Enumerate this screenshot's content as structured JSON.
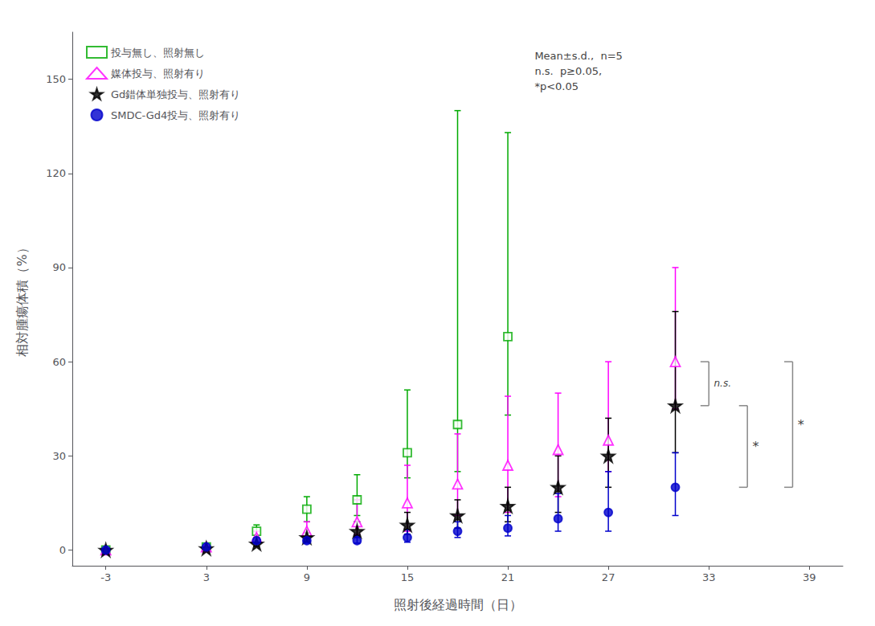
{
  "chart_data": {
    "type": "scatter",
    "xlabel": "照射後経過時間（日）",
    "ylabel": "相対腫瘍体積（%）",
    "xlim": [
      -5,
      41
    ],
    "ylim": [
      -5,
      165
    ],
    "xticks": [
      -3,
      3,
      9,
      15,
      21,
      27,
      33,
      39
    ],
    "yticks": [
      0,
      30,
      60,
      90,
      120,
      150
    ],
    "grid": false,
    "legend": "upper left",
    "annotations": [
      "Mean±s.d.,  n=5\nn.s.  p≥0.05,\n*p<0.05"
    ],
    "series": [
      {
        "name": "投与無し、照射無し",
        "color": "#00aa00",
        "marker": "square",
        "x": [
          -3,
          3,
          6,
          9,
          12,
          15,
          18,
          21
        ],
        "values": [
          0,
          1,
          6,
          13,
          16,
          31,
          40,
          68
        ],
        "yerr_lo": [
          0,
          0.5,
          2,
          4,
          5,
          8,
          15,
          25
        ],
        "yerr_hi": [
          0,
          0.5,
          2,
          4,
          8,
          20,
          100,
          65
        ]
      },
      {
        "name": "媒体投与、照射有り",
        "color": "#ff00ff",
        "marker": "triangle",
        "x": [
          -3,
          3,
          6,
          9,
          12,
          15,
          18,
          21,
          24,
          27,
          31
        ],
        "values": [
          0,
          1,
          4,
          6,
          9,
          15,
          21,
          27,
          32,
          35,
          60
        ],
        "yerr_lo": [
          0,
          0.5,
          1,
          2,
          4,
          9,
          10,
          15,
          15,
          10,
          15
        ],
        "yerr_hi": [
          0,
          0.5,
          2,
          3,
          7,
          12,
          16,
          22,
          18,
          25,
          30
        ]
      },
      {
        "name": "Gd錯体単独投与、照射有り",
        "color": "#000000",
        "marker": "star",
        "x": [
          -3,
          3,
          6,
          9,
          12,
          15,
          18,
          21,
          24,
          27,
          31
        ],
        "values": [
          0,
          0.5,
          2,
          4,
          6,
          8,
          11,
          14,
          20,
          30,
          46
        ],
        "yerr_lo": [
          0,
          0.3,
          0.8,
          1.5,
          2,
          3,
          4,
          5,
          8,
          10,
          15
        ],
        "yerr_hi": [
          0,
          0.3,
          0.8,
          1.5,
          3,
          4,
          5,
          6,
          10,
          12,
          30
        ]
      },
      {
        "name": "SMDC-Gd4投与、照射有り",
        "color": "#0000cc",
        "marker": "circle",
        "x": [
          -3,
          3,
          6,
          9,
          12,
          15,
          18,
          21,
          24,
          27,
          31
        ],
        "values": [
          0,
          1,
          3,
          3,
          3,
          4,
          6,
          7,
          10,
          12,
          20
        ],
        "yerr_lo": [
          0,
          0.5,
          0.8,
          0.8,
          0.8,
          1.5,
          2,
          2.5,
          4,
          6,
          9
        ],
        "yerr_hi": [
          0,
          0.5,
          0.8,
          0.8,
          1.5,
          2.5,
          3,
          4,
          8,
          13,
          11
        ]
      }
    ],
    "brackets": [
      {
        "label": "n.s.",
        "color": "#888888",
        "x1": 32.5,
        "x2": 33.0,
        "y_lo": 46,
        "y_hi": 60,
        "label_x": 33.3,
        "label_y": 53
      },
      {
        "label": "*",
        "color": "#888888",
        "x1": 34.8,
        "x2": 35.3,
        "y_lo": 20,
        "y_hi": 46,
        "label_x": 35.6,
        "label_y": 33
      },
      {
        "label": "*",
        "color": "#888888",
        "x1": 37.5,
        "x2": 38.0,
        "y_lo": 20,
        "y_hi": 60,
        "label_x": 38.3,
        "label_y": 40
      }
    ]
  }
}
